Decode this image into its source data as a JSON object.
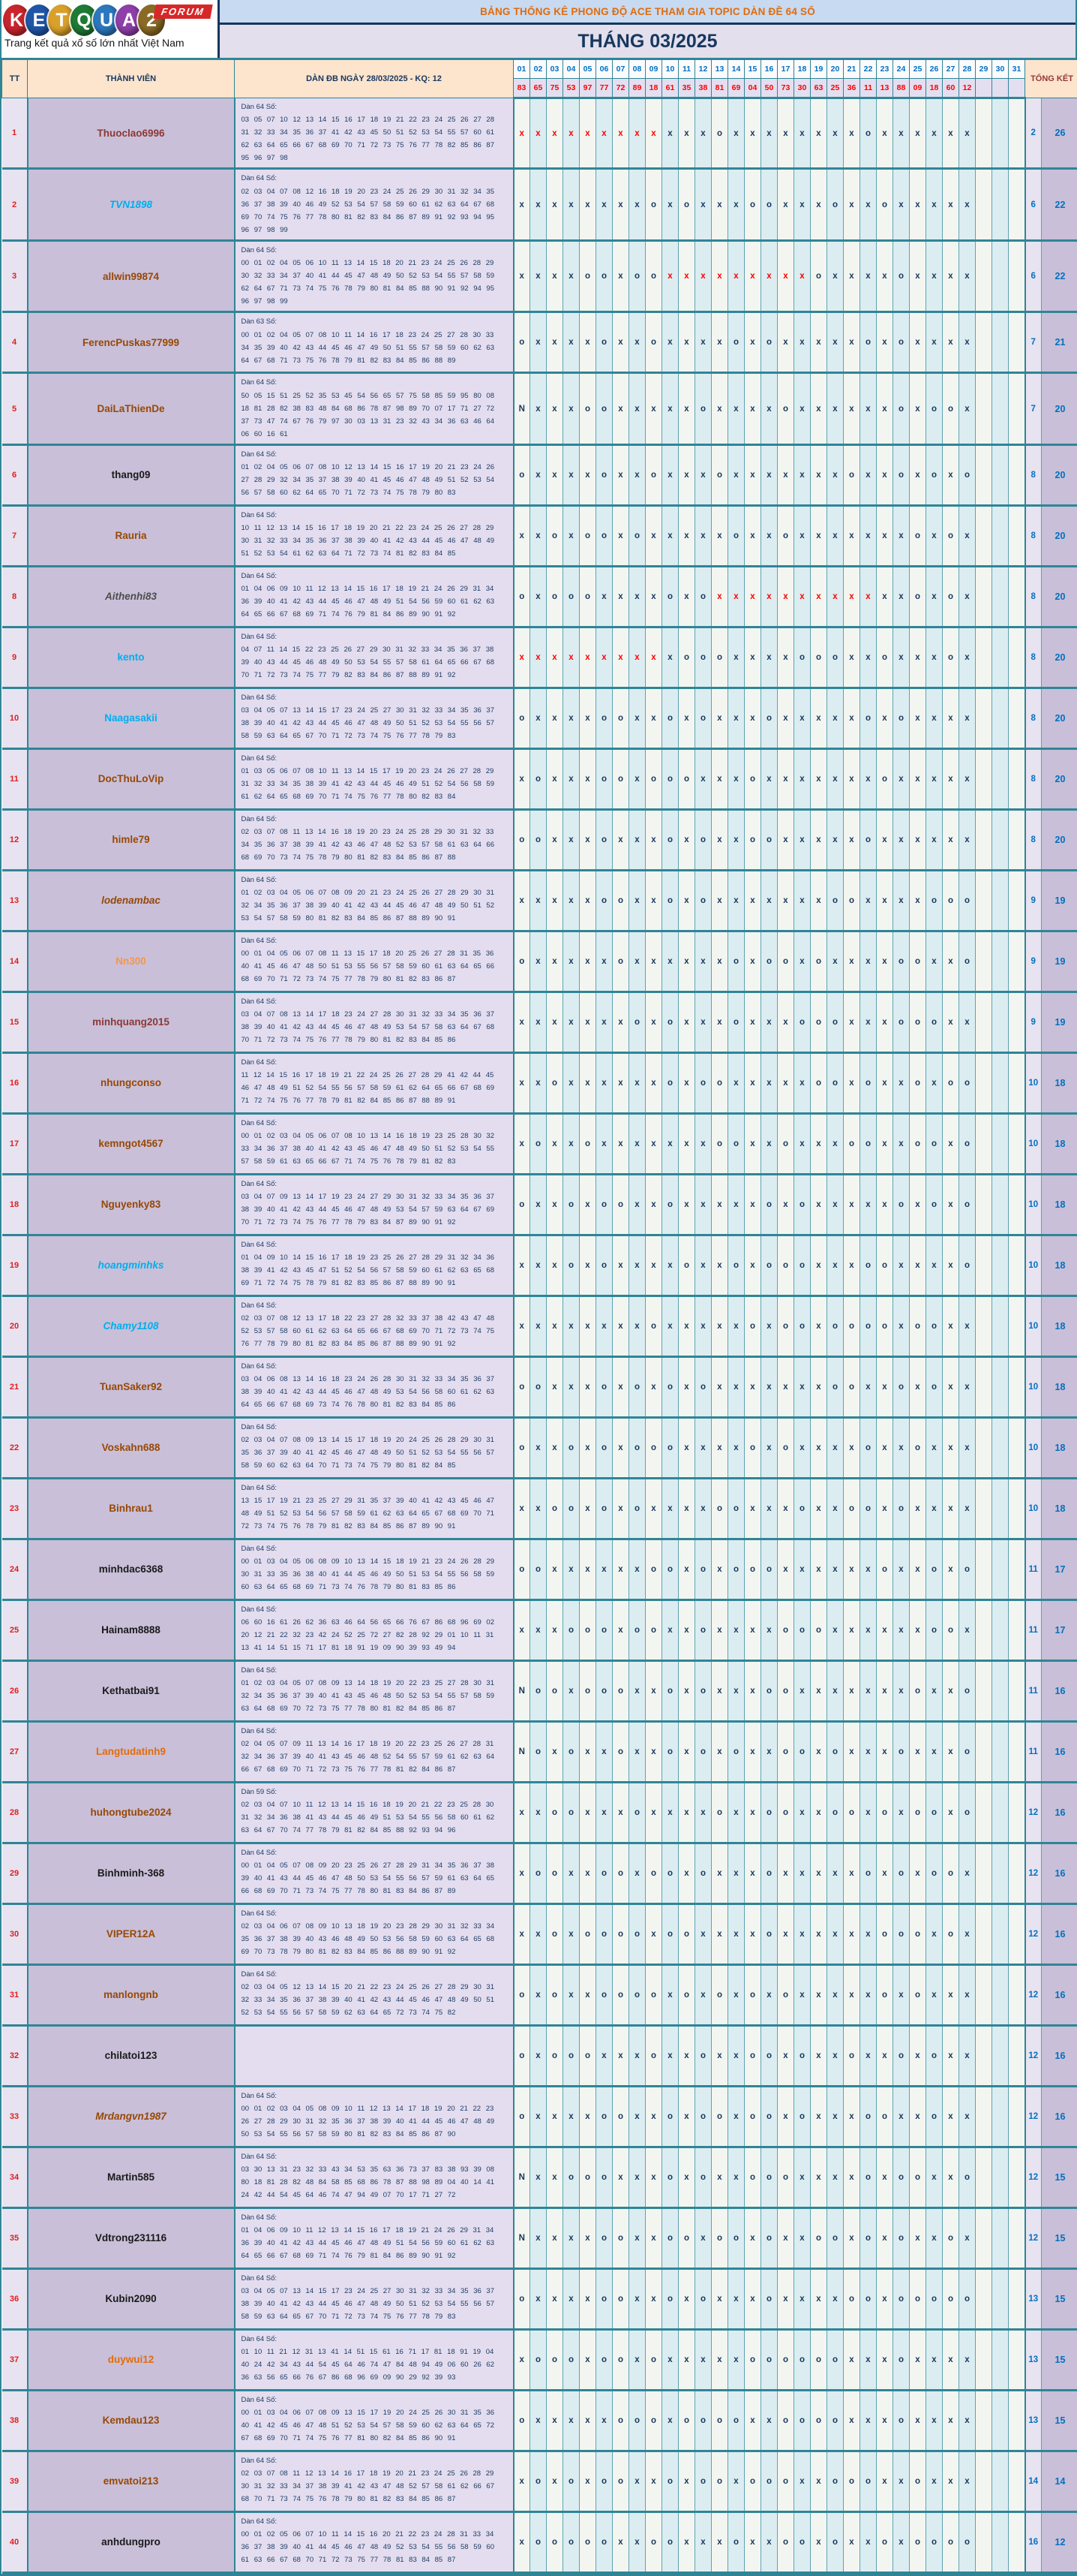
{
  "logo": {
    "letters": [
      {
        "ch": "K",
        "color": "#C8252C"
      },
      {
        "ch": "E",
        "color": "#1F56A7"
      },
      {
        "ch": "T",
        "color": "#D9A02B"
      },
      {
        "ch": "Q",
        "color": "#1E7A34"
      },
      {
        "ch": "U",
        "color": "#2C77BD"
      },
      {
        "ch": "A",
        "color": "#8E3FA8"
      },
      {
        "ch": "2",
        "color": "#8A6A25"
      }
    ],
    "forum": "FORUM",
    "tagline": "Trang kết quả xổ số lớn nhất Việt Nam"
  },
  "header": {
    "title": "BẢNG THỐNG KÊ PHONG ĐỘ ACE THAM GIA TOPIC DÀN ĐỀ 64 SỐ",
    "month": "THÁNG 03/2025"
  },
  "table": {
    "col_tt": "TT",
    "col_member": "THÀNH VIÊN",
    "col_dan": "DÀN ĐB NGÀY 28/03/2025 - KQ: 12",
    "col_total": "TỔNG KẾT",
    "days": [
      "01",
      "02",
      "03",
      "04",
      "05",
      "06",
      "07",
      "08",
      "09",
      "10",
      "11",
      "12",
      "13",
      "14",
      "15",
      "16",
      "17",
      "18",
      "19",
      "20",
      "21",
      "22",
      "23",
      "24",
      "25",
      "26",
      "27",
      "28",
      "29",
      "30",
      "31"
    ],
    "results": [
      "83",
      "65",
      "75",
      "53",
      "97",
      "77",
      "72",
      "89",
      "18",
      "61",
      "35",
      "38",
      "81",
      "69",
      "04",
      "50",
      "73",
      "30",
      "63",
      "25",
      "36",
      "11",
      "13",
      "88",
      "09",
      "18",
      "60",
      "12",
      "",
      "",
      ""
    ],
    "rows": [
      {
        "tt": "1",
        "name": "Thuoclao6996",
        "color": "#8C3836",
        "italic": false,
        "dan_label": "Dàn 64 Số:",
        "dan": "03 05 07 10 12 13 14 15 16 17 18 19 21 22 23 24 25 26 27 28 31 32 33 34 35 36 37 41 42 43 45 50 51 52 53 54 55 57 60 61 62 63 64 65 66 67 68 69 70 71 72 73 75 76 77 78 82 85 86 87 95 96 97 98",
        "marks": "XXXXXXXXXxxxoxxxxxxxxoxxxxxx",
        "miss": "2",
        "hit": "26"
      },
      {
        "tt": "2",
        "name": "TVN1898",
        "color": "#00AEEF",
        "italic": true,
        "dan_label": "Dàn 64 Số:",
        "dan": "02 03 04 07 08 12 16 18 19 20 23 24 25 26 29 30 31 32 34 35 36 37 38 39 40 46 49 52 53 54 57 58 59 60 61 62 63 64 67 68 69 70 74 75 76 77 78 80 81 82 83 84 86 87 89 91 92 93 94 95 96 97 98 99",
        "marks": "xxxxxxxxoxoxxxooxxxoxxoxxxxx",
        "miss": "6",
        "hit": "22"
      },
      {
        "tt": "3",
        "name": "allwin99874",
        "color": "#974806",
        "italic": false,
        "dan_label": "Dàn 64 Số:",
        "dan": "00 01 02 04 05 06 10 11 13 14 15 18 20 21 23 24 25 26 28 29 30 32 33 34 37 40 41 44 45 47 48 49 50 52 53 54 55 57 58 59 62 64 67 71 73 74 75 76 78 79 80 81 84 85 88 90 91 92 94 95 96 97 98 99",
        "marks": "xxxxooxooXXXXXXXXXoxxxxoxxxx",
        "miss": "6",
        "hit": "22"
      },
      {
        "tt": "4",
        "name": "FerencPuskas77999",
        "color": "#974806",
        "italic": false,
        "dan_label": "Dàn 63 Số:",
        "dan": "00 01 02 04 05 07 08 10 11 14 16 17 18 23 24 25 27 28 30 33 34 35 39 40 42 43 44 45 46 47 49 50 51 55 57 58 59 60 62 63 64 67 68 71 73 75 76 78 79 81 82 83 84 85 86 88 89",
        "marks": "oxxxxoxxoxxxxoxoxxxxxoxoxxxx",
        "miss": "7",
        "hit": "21"
      },
      {
        "tt": "5",
        "name": "DaiLaThienDe",
        "color": "#974806",
        "italic": false,
        "dan_label": "Dàn 64 Số:",
        "dan": "50 05 15 51 25 52 35 53 45 54 56 65 57 75 58 85 59 95 80 08 18 81 28 82 38 83 48 84 68 86 78 87 98 89 70 07 17 71 27 72 37 73 47 74 67 76 79 97 30 03 13 31 23 32 43 34 36 63 46 64 06 60 16 61",
        "marks": "Nxxxooxxxxxoxxxxoxxxxxxoxoox",
        "miss": "7",
        "hit": "20"
      },
      {
        "tt": "6",
        "name": "thang09",
        "color": "#1A1A1A",
        "italic": false,
        "dan_label": "Dàn 64 Số:",
        "dan": "01 02 04 05 06 07 08 10 12 13 14 15 16 17 19 20 21 23 24 26 27 28 29 32 34 35 37 38 39 40 41 45 46 47 48 49 51 52 53 54 56 57 58 60 62 64 65 70 71 72 73 74 75 78 79 80 83",
        "marks": "oxxxxoxxoxxxoxxxxxxxoxxoxoxo",
        "miss": "8",
        "hit": "20"
      },
      {
        "tt": "7",
        "name": "Rauria",
        "color": "#974806",
        "italic": false,
        "dan_label": "Dàn 64 Số:",
        "dan": "10 11 12 13 14 15 16 17 18 19 20 21 22 23 24 25 26 27 28 29 30 31 32 33 34 35 36 37 38 39 40 41 42 43 44 45 46 47 48 49 51 52 53 54 61 62 63 64 71 72 73 74 81 82 83 84 85",
        "marks": "xxoxooxoxxxxxoxxoxxxxxxxoxox",
        "miss": "8",
        "hit": "20"
      },
      {
        "tt": "8",
        "name": "Aithenhi83",
        "color": "#4D4D4D",
        "italic": true,
        "dan_label": "Dàn 64 Số:",
        "dan": "01 04 06 09 10 11 12 13 14 15 16 17 18 19 21 24 26 29 31 34 36 39 40 41 42 43 44 45 46 47 48 49 51 54 56 59 60 61 62 63 64 65 66 67 68 69 71 74 76 79 81 84 86 89 90 91 92",
        "marks": "oxoooxxxxoxoXXXXXXXXXXxxoxox",
        "miss": "8",
        "hit": "20"
      },
      {
        "tt": "9",
        "name": "kento",
        "color": "#00AEEF",
        "italic": false,
        "dan_label": "Dàn 64 Số:",
        "dan": "04 07 11 14 15 22 23 25 26 27 29 30 31 32 33 34 35 36 37 38 39 40 43 44 45 46 48 49 50 53 54 55 57 58 61 64 65 66 67 68 70 71 72 73 74 75 77 79 82 83 84 86 87 88 89 91 92",
        "marks": "XXXXXXXXXxoooxxxxoooxxoxxxox",
        "miss": "8",
        "hit": "20"
      },
      {
        "tt": "10",
        "name": "Naagasakii",
        "color": "#00AEEF",
        "italic": false,
        "dan_label": "Dàn 64 Số:",
        "dan": "03 04 05 07 13 14 15 17 23 24 25 27 30 31 32 33 34 35 36 37 38 39 40 41 42 43 44 45 46 47 48 49 50 51 52 53 54 55 56 57 58 59 63 64 65 67 70 71 72 73 74 75 76 77 78 79 83",
        "marks": "oxxxxooxxoxoxxxoxxxxxoxoxxxx",
        "miss": "8",
        "hit": "20"
      },
      {
        "tt": "11",
        "name": "DocThuLoVip",
        "color": "#974806",
        "italic": false,
        "dan_label": "Dàn 64 Số:",
        "dan": "01 03 05 06 07 08 10 11 13 14 15 17 19 20 23 24 26 27 28 29 31 32 33 34 35 38 39 41 42 43 44 45 46 49 51 52 54 56 58 59 61 62 64 65 68 69 70 71 74 75 76 77 78 80 82 83 84",
        "marks": "xoxxxooxoooxxxoxxxxxxxoxxxxx",
        "miss": "8",
        "hit": "20"
      },
      {
        "tt": "12",
        "name": "himle79",
        "color": "#974806",
        "italic": false,
        "dan_label": "Dàn 64 Số:",
        "dan": "02 03 07 08 11 13 14 16 18 19 20 23 24 25 28 29 30 31 32 33 34 35 36 37 38 39 41 42 43 46 47 48 52 53 57 58 61 63 64 66 68 69 70 73 74 75 78 79 80 81 82 83 84 85 86 87 88",
        "marks": "ooxxxoxxxoxoxxooxxxxxoxxxxxx",
        "miss": "8",
        "hit": "20"
      },
      {
        "tt": "13",
        "name": "lodenambac",
        "color": "#974806",
        "italic": true,
        "dan_label": "Dàn 64 Số:",
        "dan": "01 02 03 04 05 06 07 08 09 20 21 23 24 25 26 27 28 29 30 31 32 34 35 36 37 38 39 40 41 42 43 44 45 46 47 48 49 50 51 52 53 54 57 58 59 80 81 82 83 84 85 86 87 88 89 90 91",
        "marks": "xxxxxooxxoxoxxxxxxxooxxxxooo",
        "miss": "9",
        "hit": "19"
      },
      {
        "tt": "14",
        "name": "Nn300",
        "color": "#F79646",
        "italic": false,
        "dan_label": "Dàn 64 Số:",
        "dan": "00 01 04 05 06 07 08 11 13 15 17 18 20 25 26 27 28 31 35 36 40 41 45 46 47 48 50 51 53 55 56 57 58 59 60 61 63 64 65 66 68 69 70 71 72 73 74 75 77 78 79 80 81 82 83 86 87",
        "marks": "oxxxxxoxxxxxxoxooxoxxxxooxxo",
        "miss": "9",
        "hit": "19"
      },
      {
        "tt": "15",
        "name": "minhquang2015",
        "color": "#8C3836",
        "italic": false,
        "dan_label": "Dàn 64 Số:",
        "dan": "03 04 07 08 13 14 17 18 23 24 27 28 30 31 32 33 34 35 36 37 38 39 40 41 42 43 44 45 46 47 48 49 53 54 57 58 63 64 67 68 70 71 72 73 74 75 76 77 78 79 80 81 82 83 84 85 86",
        "marks": "xxxxxxxoxoxxxoxxxoooxxxoooxx",
        "miss": "9",
        "hit": "19"
      },
      {
        "tt": "16",
        "name": "nhungconso",
        "color": "#974806",
        "italic": false,
        "dan_label": "Dàn 64 Số:",
        "dan": "11 12 14 15 16 17 18 19 21 22 24 25 26 27 28 29 41 42 44 45 46 47 48 49 51 52 54 55 56 57 58 59 61 62 64 65 66 67 68 69 71 72 74 75 76 77 78 79 81 82 84 85 86 87 88 89 91",
        "marks": "xxoxxxxxxoxooxxxxxooxoxxoxoo",
        "miss": "10",
        "hit": "18"
      },
      {
        "tt": "17",
        "name": "kemngot4567",
        "color": "#974806",
        "italic": false,
        "dan_label": "Dàn 64 Số:",
        "dan": "00 01 02 03 04 05 06 07 08 10 13 14 16 18 19 23 25 28 30 32 33 34 36 37 38 40 41 42 43 45 46 47 48 49 50 51 52 53 54 55 57 58 59 61 63 65 66 67 71 74 75 76 78 79 81 82 83",
        "marks": "xoxxoxxxxxxxooxxoxxxooxxooxo",
        "miss": "10",
        "hit": "18"
      },
      {
        "tt": "18",
        "name": "Nguyenky83",
        "color": "#974806",
        "italic": false,
        "dan_label": "Dàn 64 Số:",
        "dan": "03 04 07 09 13 14 17 19 23 24 27 29 30 31 32 33 34 35 36 37 38 39 40 41 42 43 44 45 46 47 48 49 53 54 57 59 63 64 67 69 70 71 72 73 74 75 76 77 78 79 83 84 87 89 90 91 92",
        "marks": "oxxoxooxxoxxxxxoxoxxxxxoxoxo",
        "miss": "10",
        "hit": "18"
      },
      {
        "tt": "19",
        "name": "hoangminhks",
        "color": "#00AEEF",
        "italic": true,
        "dan_label": "Dàn 64 Số:",
        "dan": "01 04 09 10 14 15 16 17 18 19 23 25 26 27 28 29 31 32 34 36 38 39 41 42 43 45 47 51 52 54 56 57 58 59 60 61 62 63 65 68 69 71 72 74 75 78 79 81 82 83 85 86 87 88 89 90 91",
        "marks": "xxxoxoxxxxoxxoxoooxxxooxxxxo",
        "miss": "10",
        "hit": "18"
      },
      {
        "tt": "20",
        "name": "Chamy1108",
        "color": "#00AEEF",
        "italic": true,
        "dan_label": "Dàn 64 Số:",
        "dan": "02 03 07 08 12 13 17 18 22 23 27 28 32 33 37 38 42 43 47 48 52 53 57 58 60 61 62 63 64 65 66 67 68 69 70 71 72 73 74 75 76 77 78 79 80 81 82 83 84 85 86 87 88 89 90 91 92",
        "marks": "xxxxxxxxoxxxxxoxooxooooxooxx",
        "miss": "10",
        "hit": "18"
      },
      {
        "tt": "21",
        "name": "TuanSaker92",
        "color": "#974806",
        "italic": false,
        "dan_label": "Dàn 64 Số:",
        "dan": "03 04 06 08 13 14 16 18 23 24 26 28 30 31 32 33 34 35 36 37 38 39 40 41 42 43 44 45 46 47 48 49 53 54 56 58 60 61 62 63 64 65 66 67 68 69 73 74 76 78 80 81 82 83 84 85 86",
        "marks": "ooxxxoxoxoxoxxxxxxxooxxoxoxx",
        "miss": "10",
        "hit": "18"
      },
      {
        "tt": "22",
        "name": "Voskahn688",
        "color": "#974806",
        "italic": false,
        "dan_label": "Dàn 64 Số:",
        "dan": "02 03 04 07 08 09 13 14 15 17 18 19 20 24 25 26 28 29 30 31 35 36 37 39 40 41 42 45 46 47 48 49 50 51 52 53 54 55 56 57 58 59 60 62 63 64 70 71 73 74 75 79 80 81 82 84 85",
        "marks": "oxxoxoxoooxxxxoxoxxxxoxxoxxx",
        "miss": "10",
        "hit": "18"
      },
      {
        "tt": "23",
        "name": "Binhrau1",
        "color": "#974806",
        "italic": false,
        "dan_label": "Dàn 64 Số:",
        "dan": "13 15 17 19 21 23 25 27 29 31 35 37 39 40 41 42 43 45 46 47 48 49 51 52 53 54 56 57 58 59 61 62 63 64 65 67 68 69 70 71 72 73 74 75 76 78 79 81 82 83 84 85 86 87 89 90 91",
        "marks": "xxooxoxoxxxxooxxxoxxooxoxxxx",
        "miss": "10",
        "hit": "18"
      },
      {
        "tt": "24",
        "name": "minhdac6368",
        "color": "#1A1A1A",
        "italic": false,
        "dan_label": "Dàn 64 Số:",
        "dan": "00 01 03 04 05 06 08 09 10 13 14 15 18 19 21 23 24 26 28 29 30 31 33 35 36 38 40 41 44 45 46 49 50 51 53 54 55 56 58 59 60 63 64 65 68 69 71 73 74 76 78 79 80 81 83 85 86",
        "marks": "ooxxxxxxooxoxoooxxxxxxoxxoxo",
        "miss": "11",
        "hit": "17"
      },
      {
        "tt": "25",
        "name": "Hainam8888",
        "color": "#1A1A1A",
        "italic": false,
        "dan_label": "Dàn 64 Số:",
        "dan": "06 60 16 61 26 62 36 63 46 64 56 65 66 76 67 86 68 96 69 02 20 12 21 22 32 23 42 24 52 25 72 27 82 28 92 29 01 10 11 31 13 41 14 51 15 71 17 81 18 91 19 09 90 39 93 49 94",
        "marks": "xxxoooxooxxoxxxxoooxxxxxxoox",
        "miss": "11",
        "hit": "17"
      },
      {
        "tt": "26",
        "name": "Kethatbai91",
        "color": "#1A1A1A",
        "italic": false,
        "dan_label": "Dàn 64 Số:",
        "dan": "01 02 03 04 05 07 08 09 13 14 18 19 20 22 23 25 27 28 30 31 32 34 35 36 37 39 40 41 43 45 46 48 50 52 53 54 55 57 58 59 63 64 68 69 70 72 73 75 77 78 80 81 82 84 85 86 87",
        "marks": "Nooxoooxxoxoxxxooxxxxxxxoxxo",
        "miss": "11",
        "hit": "16"
      },
      {
        "tt": "27",
        "name": "Langtudatinh9",
        "color": "#E36C0A",
        "italic": false,
        "dan_label": "Dàn 64 Số:",
        "dan": "02 04 05 07 09 11 13 14 16 17 18 19 20 22 23 25 26 27 28 31 32 34 36 37 39 40 41 43 45 46 48 52 54 55 57 59 61 62 63 64 66 67 68 69 70 71 72 73 75 76 77 78 81 82 84 86 87",
        "marks": "Noxoxxoxxoxoxoxxooxoxxxoxxxo",
        "miss": "11",
        "hit": "16"
      },
      {
        "tt": "28",
        "name": "huhongtube2024",
        "color": "#974806",
        "italic": false,
        "dan_label": "Dàn 59 Số:",
        "dan": "02 03 04 07 10 11 12 13 14 15 16 18 19 20 21 22 23 25 28 30 31 32 34 36 38 41 43 44 45 46 49 51 53 54 55 56 58 60 61 62 63 64 67 70 74 77 78 79 81 82 84 85 88 92 93 94 96",
        "marks": "xxooxxxoxxxxoxxooxxooxoxooxo",
        "miss": "12",
        "hit": "16"
      },
      {
        "tt": "29",
        "name": "Binhminh-368",
        "color": "#1A1A1A",
        "italic": false,
        "dan_label": "Dàn 64 Số:",
        "dan": "00 01 04 05 07 08 09 20 23 25 26 27 28 29 31 34 35 36 37 38 39 40 41 43 44 45 46 47 48 50 53 54 55 56 57 59 61 63 64 65 66 68 69 70 71 73 74 75 77 78 80 81 83 84 86 87 89",
        "marks": "xooxxooxooxoxxxoxxxxxoxoxoox",
        "miss": "12",
        "hit": "16"
      },
      {
        "tt": "30",
        "name": "VIPER12A",
        "color": "#974806",
        "italic": false,
        "dan_label": "Dàn 64 Số:",
        "dan": "02 03 04 06 07 08 09 10 13 18 19 20 23 28 29 30 31 32 33 34 35 36 37 38 39 40 43 46 48 49 50 53 56 58 59 60 63 64 65 68 69 70 73 78 79 80 81 82 83 84 85 86 88 89 90 91 92",
        "marks": "xxoxooooxooxxxxoxxxxxxoooxox",
        "miss": "12",
        "hit": "16"
      },
      {
        "tt": "31",
        "name": "manlongnb",
        "color": "#974806",
        "italic": false,
        "dan_label": "Dàn 64 Số:",
        "dan": "02 03 04 05 12 13 14 15 20 21 22 23 24 25 26 27 28 29 30 31 32 33 34 35 36 37 38 39 40 41 42 43 44 45 46 47 48 49 50 51 52 53 54 55 56 57 58 59 62 63 64 65 72 73 74 75 82",
        "marks": "oxoxxooooxoxoxoxoxxxxxoxoxxx",
        "miss": "12",
        "hit": "16"
      },
      {
        "tt": "32",
        "name": "chilatoi123",
        "color": "#1A1A1A",
        "italic": false,
        "dan_label": "",
        "dan": "",
        "marks": "oxoooxxxoxxoxxooxoxxoxxoxoxx",
        "miss": "12",
        "hit": "16"
      },
      {
        "tt": "33",
        "name": "Mrdangvn1987",
        "color": "#974806",
        "italic": true,
        "dan_label": "Dàn 64 Số:",
        "dan": "00 01 02 03 04 05 08 09 10 11 12 13 14 17 18 19 20 21 22 23 26 27 28 29 30 31 32 35 36 37 38 39 40 41 44 45 46 47 48 49 50 53 54 55 56 57 58 59 80 81 82 83 84 85 86 87 90",
        "marks": "oxxxxooxxoxooxooxoxxxooxxoxx",
        "miss": "12",
        "hit": "16"
      },
      {
        "tt": "34",
        "name": "Martin585",
        "color": "#1A1A1A",
        "italic": false,
        "dan_label": "Dàn 64 Số:",
        "dan": "03 30 13 31 23 32 33 43 34 53 35 63 36 73 37 83 38 93 39 08 80 18 81 28 82 48 84 58 85 68 86 78 87 88 98 89 04 40 14 41 24 42 44 54 45 64 46 74 47 94 49 07 70 17 71 27 72",
        "marks": "Nxxoooxxxoxoxxoooxxxxoxooxxo",
        "miss": "12",
        "hit": "15"
      },
      {
        "tt": "35",
        "name": "Vdtrong231116",
        "color": "#1A1A1A",
        "italic": false,
        "dan_label": "Dàn 64 Số:",
        "dan": "01 04 06 09 10 11 12 13 14 15 16 17 18 19 21 24 26 29 31 34 36 39 40 41 42 43 44 45 46 47 48 49 51 54 56 59 60 61 62 63 64 65 66 67 68 69 71 74 76 79 81 84 86 89 90 91 92",
        "marks": "Nxxxxooxxooxooxoxxooxoxoxxox",
        "miss": "12",
        "hit": "15"
      },
      {
        "tt": "36",
        "name": "Kubin2090",
        "color": "#1A1A1A",
        "italic": false,
        "dan_label": "Dàn 64 Số:",
        "dan": "03 04 05 07 13 14 15 17 23 24 25 27 30 31 32 33 34 35 36 37 38 39 40 41 42 43 44 45 46 47 48 49 50 51 52 53 54 55 56 57 58 59 63 64 65 67 70 71 72 73 74 75 76 77 78 79 83",
        "marks": "oxxxxooxxoxoxxxoxxxxooxooooo",
        "miss": "13",
        "hit": "15"
      },
      {
        "tt": "37",
        "name": "duywui12",
        "color": "#E36C0A",
        "italic": false,
        "dan_label": "Dàn 64 Số:",
        "dan": "01 10 11 21 12 31 13 41 14 51 15 61 16 71 17 81 18 91 19 04 40 24 42 34 43 44 54 45 64 46 74 47 84 48 94 49 06 60 26 62 36 63 56 65 66 76 67 86 68 96 69 09 90 29 92 39 93",
        "marks": "xoooxooxoxxxxxooooooxxxoxxxx",
        "miss": "13",
        "hit": "15"
      },
      {
        "tt": "38",
        "name": "Kemdau123",
        "color": "#974806",
        "italic": false,
        "dan_label": "Dàn 64 Số:",
        "dan": "00 01 03 04 06 07 08 09 13 15 17 19 20 24 25 26 30 31 35 36 40 41 42 45 46 47 48 51 52 53 54 57 58 59 60 62 63 64 65 72 67 68 69 70 71 74 75 76 77 81 80 82 84 85 86 90 91",
        "marks": "oxxxxxoooxooooxxooooxxxoxxxx",
        "miss": "13",
        "hit": "15"
      },
      {
        "tt": "39",
        "name": "emvatoi213",
        "color": "#974806",
        "italic": false,
        "dan_label": "Dàn 64 Số:",
        "dan": "02 03 07 08 11 12 13 14 16 17 18 19 20 21 23 24 25 26 28 29 30 31 32 33 34 37 38 39 41 42 43 47 48 52 57 58 61 62 66 67 68 70 71 73 74 75 76 78 79 80 81 82 83 84 85 86 87",
        "marks": "xoxoxooxxoxooxoooxxoooxxoxxx",
        "miss": "14",
        "hit": "14"
      },
      {
        "tt": "40",
        "name": "anhdungpro",
        "color": "#1A1A1A",
        "italic": false,
        "dan_label": "Dàn 64 Số:",
        "dan": "00 01 02 05 06 07 10 11 14 15 16 20 21 22 23 24 28 31 33 34 36 37 38 39 40 41 44 45 46 47 48 49 52 53 54 55 56 58 59 60 61 63 66 67 68 70 71 72 73 75 77 78 81 83 84 85 87",
        "marks": "xoooooxxooxxxoxxooxoxxoxoooo",
        "miss": "16",
        "hit": "12"
      }
    ]
  }
}
